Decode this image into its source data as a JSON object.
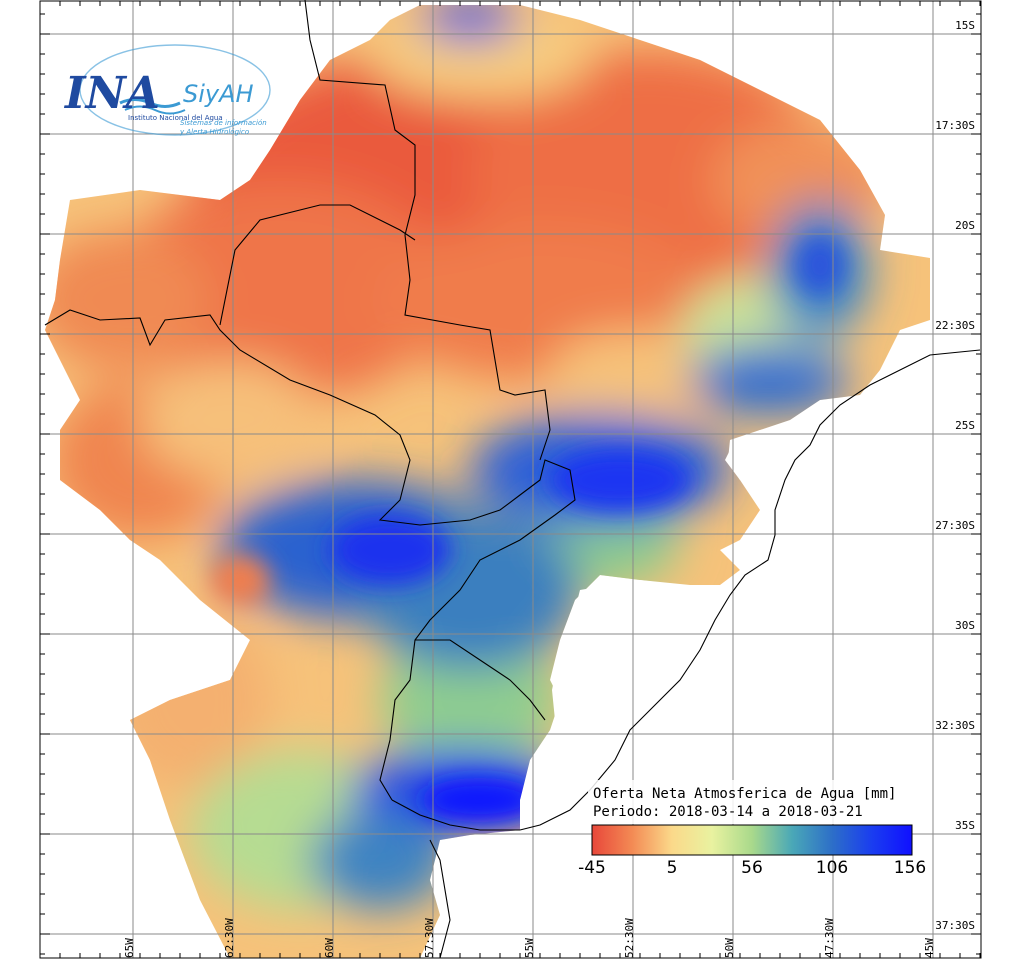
{
  "logo": {
    "primary": "INA",
    "secondary": "SiyAH",
    "institute": "Instituto Nacional del Agua",
    "system_line1": "Sistemas de información",
    "system_line2": "y Alerta Hidrológico",
    "color_primary": "#1f4aa0",
    "color_secondary": "#3b9ad3"
  },
  "legend": {
    "title_line1": "Oferta Neta Atmosferica de Agua [mm]",
    "title_line2": "Periodo: 2018-03-14 a 2018-03-21",
    "ticks": [
      "-45",
      "5",
      "56",
      "106",
      "156"
    ],
    "colors": [
      "#e8473a",
      "#f38a54",
      "#fbd98a",
      "#e9f2a0",
      "#a9d98b",
      "#4aa8b7",
      "#2d6fc8",
      "#1a3df0",
      "#1010ff"
    ]
  },
  "axes": {
    "longitude_labels": [
      "65W",
      "62:30W",
      "60W",
      "57:30W",
      "55W",
      "52:30W",
      "50W",
      "47:30W",
      "45W"
    ],
    "latitude_labels": [
      "15S",
      "17:30S",
      "20S",
      "22:30S",
      "25S",
      "27:30S",
      "30S",
      "32:30S",
      "35S",
      "37:30S"
    ]
  }
}
